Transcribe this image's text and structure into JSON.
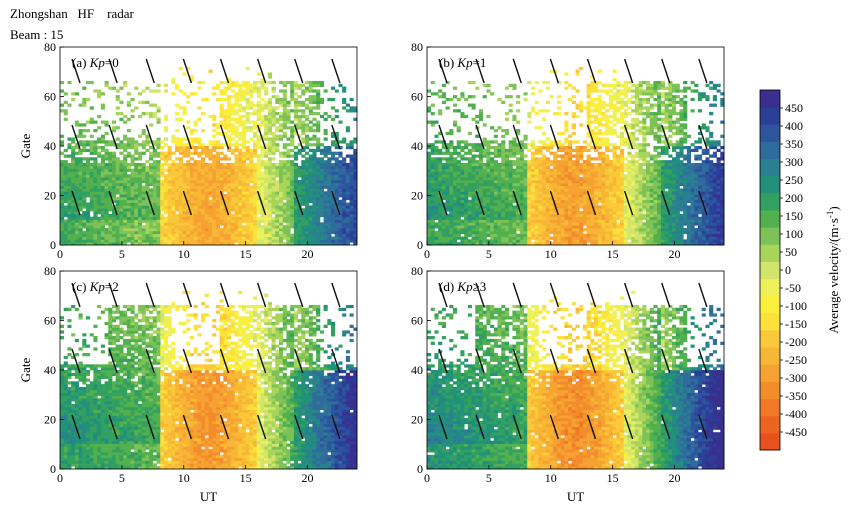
{
  "header": {
    "title": "Zhongshan   HF    radar",
    "beam": "Beam : 15"
  },
  "chart_data": {
    "type": "heatmap",
    "panels": [
      {
        "id": "a",
        "label_prefix": "(a) ",
        "label_italic": "Kp",
        "label_suffix": "=0"
      },
      {
        "id": "b",
        "label_prefix": "(b) ",
        "label_italic": "Kp",
        "label_suffix": "=1"
      },
      {
        "id": "c",
        "label_prefix": "(c) ",
        "label_italic": "Kp",
        "label_suffix": "=2"
      },
      {
        "id": "d",
        "label_prefix": "(d) ",
        "label_italic": "Kp",
        "label_suffix": "≥3"
      }
    ],
    "xlabel": "UT",
    "ylabel": "Gate",
    "xlim": [
      0,
      24
    ],
    "ylim": [
      0,
      80
    ],
    "xticks": [
      0,
      5,
      10,
      15,
      20
    ],
    "yticks": [
      0,
      20,
      40,
      60,
      80
    ],
    "colorbar": {
      "label": "Average velocity/(m·s⁻¹)",
      "label_parts": [
        "Average velocity/(m",
        "s",
        "-1",
        ")"
      ],
      "range": [
        -500,
        500
      ],
      "ticks": [
        450,
        400,
        350,
        300,
        250,
        200,
        150,
        100,
        50,
        0,
        -50,
        -100,
        -150,
        -200,
        -250,
        -300,
        -350,
        -400,
        -450
      ],
      "colors": [
        "#e8501e",
        "#ed6420",
        "#f07826",
        "#f38d2c",
        "#f6a232",
        "#f8b635",
        "#fac93a",
        "#fce03c",
        "#fbef3c",
        "#eef05a",
        "#d0e56a",
        "#a8d45a",
        "#7cc258",
        "#52b04e",
        "#32a060",
        "#22917a",
        "#2a7f90",
        "#2f6c9c",
        "#2c559e",
        "#2c3f98",
        "#3a2f8e"
      ]
    }
  }
}
